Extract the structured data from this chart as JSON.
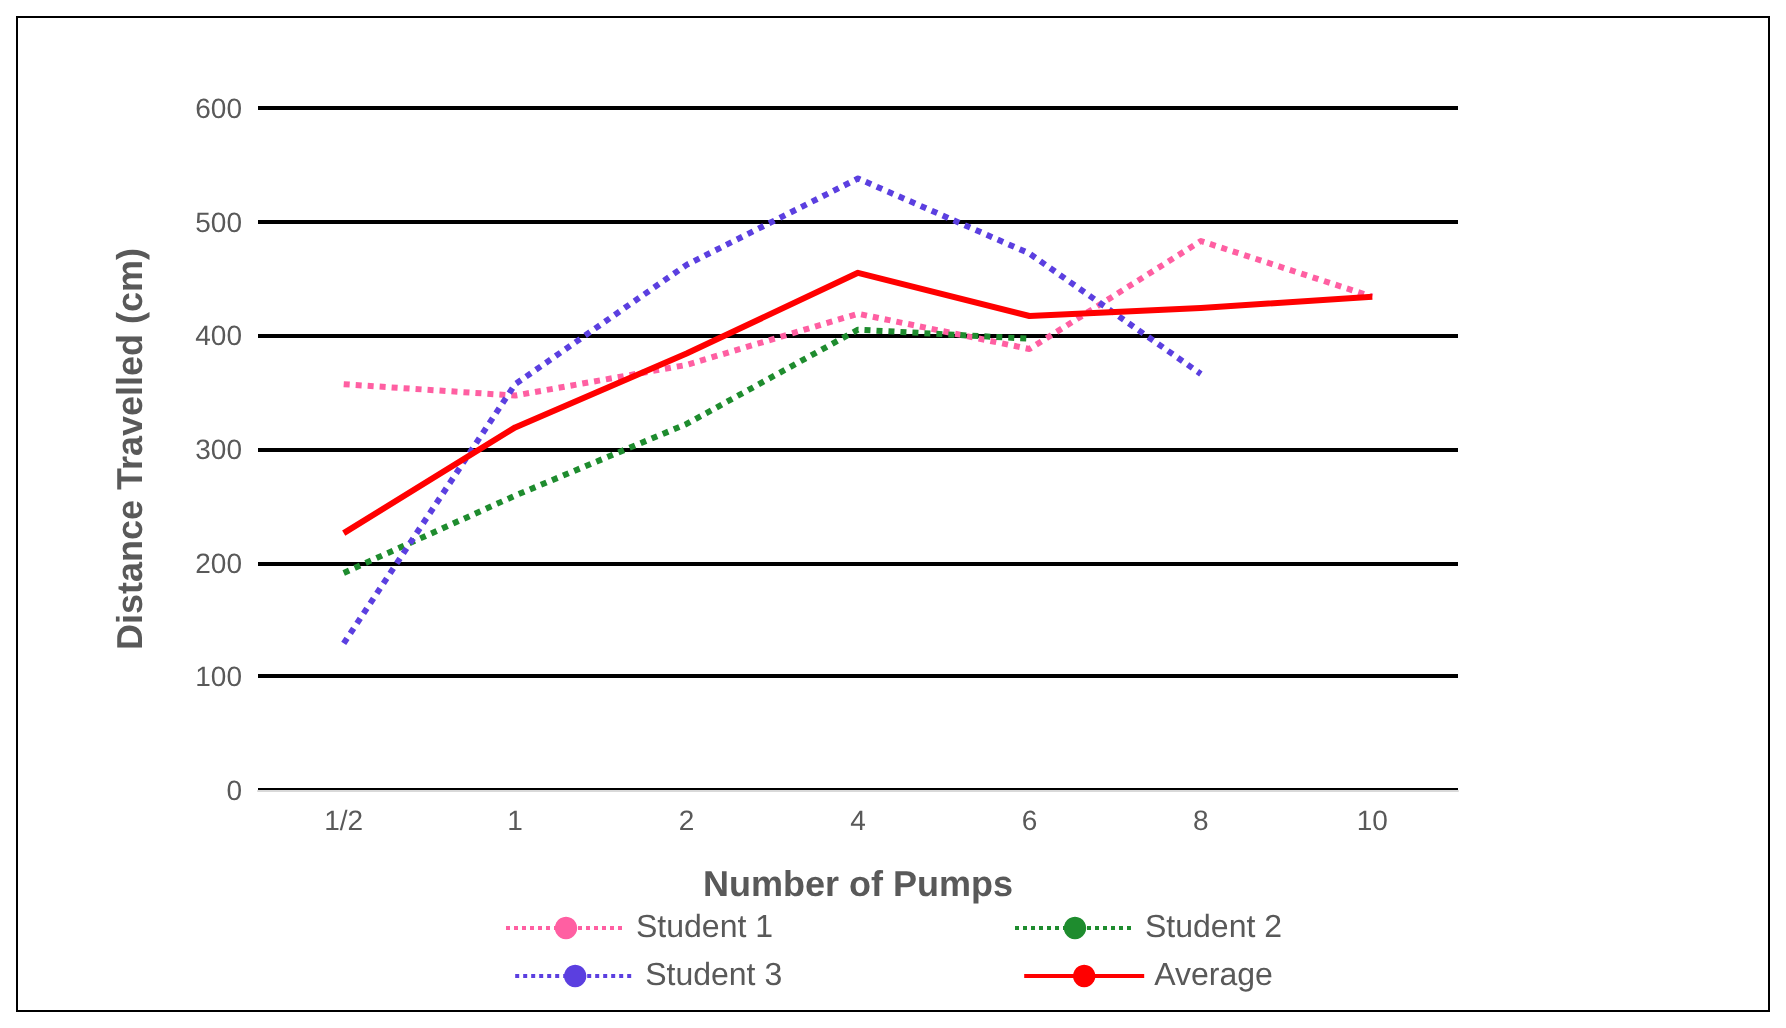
{
  "chart_data": {
    "type": "line",
    "xlabel": "Number of Pumps",
    "ylabel": "Distance Travelled (cm)",
    "categories": [
      "1/2",
      "1",
      "2",
      "4",
      "6",
      "8",
      "10"
    ],
    "ylim": [
      0,
      600
    ],
    "yticks": [
      0,
      100,
      200,
      300,
      400,
      500,
      600
    ],
    "grid": "y",
    "legend": "bottom",
    "marker": "none",
    "series": [
      {
        "name": "Student 1",
        "color": "#ff5fa2",
        "line_style": "dotted",
        "values": [
          357,
          347,
          374,
          419,
          388,
          483,
          434
        ]
      },
      {
        "name": "Student 2",
        "color": "#1e8c2e",
        "line_style": "dotted",
        "values": [
          191,
          259,
          322,
          405,
          397,
          null,
          null
        ]
      },
      {
        "name": "Student 3",
        "color": "#5b3fe0",
        "line_style": "dotted",
        "values": [
          129,
          357,
          462,
          538,
          472,
          366,
          null
        ]
      },
      {
        "name": "Average",
        "color": "#ff0000",
        "line_style": "solid",
        "values": [
          226,
          319,
          384,
          455,
          417,
          424,
          434
        ]
      }
    ]
  }
}
